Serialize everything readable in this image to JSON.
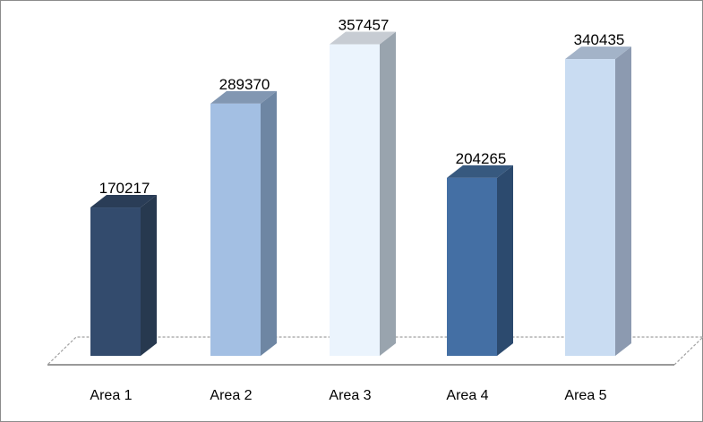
{
  "chart_data": {
    "type": "bar",
    "categories": [
      "Area 1",
      "Area 2",
      "Area 3",
      "Area 4",
      "Area 5"
    ],
    "values": [
      170217,
      289370,
      357457,
      204265,
      340435
    ],
    "data_labels": [
      "170217",
      "289370",
      "357457",
      "204265",
      "340435"
    ],
    "style": "3d-column",
    "colors": [
      "#334b6d",
      "#a3bfe3",
      "#ebf4fd",
      "#446fa4",
      "#c9dcf2"
    ],
    "side_colors": [
      "#27394f",
      "#6e86a3",
      "#99a4ae",
      "#2c4a6e",
      "#8c9ab0"
    ],
    "top_colors": [
      "#2a3d57",
      "#8297b2",
      "#c7ccd3",
      "#37597f",
      "#a3b3c8"
    ],
    "title": "",
    "xlabel": "",
    "ylabel": "",
    "ylim": [
      0,
      400000
    ],
    "grid": false,
    "legend": "none"
  }
}
